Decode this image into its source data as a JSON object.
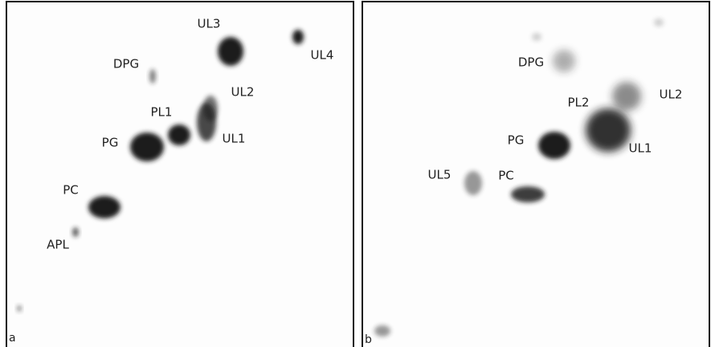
{
  "panels": [
    {
      "label": "a",
      "spots": [
        "UL3",
        "UL4",
        "DPG",
        "UL2",
        "PL1",
        "PG",
        "UL1",
        "PC",
        "APL"
      ]
    },
    {
      "label": "b",
      "spots": [
        "DPG",
        "PL2",
        "UL2",
        "PG",
        "UL1",
        "UL5",
        "PC"
      ]
    }
  ]
}
